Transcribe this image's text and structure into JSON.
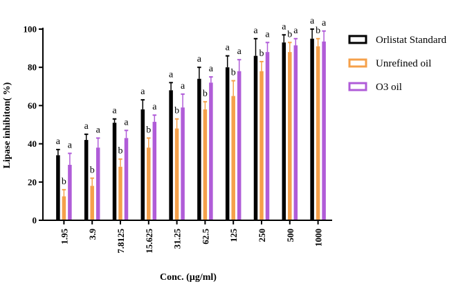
{
  "chart_data": {
    "type": "bar",
    "xlabel": "Conc. (µg/ml)",
    "ylabel": "Lipase inhibiton( %)",
    "ylim": [
      0,
      100
    ],
    "yticks": [
      0,
      20,
      40,
      60,
      80,
      100
    ],
    "categories": [
      "1.95",
      "3.9",
      "7.8125",
      "15.625",
      "31.25",
      "62.5",
      "125",
      "250",
      "500",
      "1000"
    ],
    "legend_position": "top-right",
    "series": [
      {
        "name": "Orlistat Standard",
        "color": "#000000",
        "values": [
          34,
          42,
          51,
          58,
          68,
          74,
          80,
          86,
          93,
          95
        ],
        "error_upper": [
          37,
          45,
          53,
          63,
          72,
          80,
          86,
          95,
          97,
          100
        ],
        "sig_labels": [
          "a",
          "a",
          "a",
          "a",
          "a",
          "a",
          "a",
          "a",
          "a",
          "a"
        ]
      },
      {
        "name": "Unrefined oil",
        "color": "#F5A04A",
        "values": [
          12.5,
          18,
          28,
          38,
          48,
          58,
          65,
          78,
          88,
          91
        ],
        "error_upper": [
          16,
          22,
          32,
          43,
          53,
          62,
          73,
          83,
          93,
          95
        ],
        "sig_labels": [
          "b",
          "b",
          "b",
          "b",
          "b",
          "b",
          "b",
          "b",
          "b",
          "b"
        ]
      },
      {
        "name": "O3 oil",
        "color": "#B05CD8",
        "values": [
          29,
          38,
          43,
          51.5,
          59,
          72,
          78,
          88,
          91.5,
          93.5
        ],
        "error_upper": [
          35,
          43,
          47,
          55,
          66,
          75,
          84,
          93,
          95,
          99
        ],
        "sig_labels": [
          "a",
          "a",
          "a",
          "a",
          "a",
          "a",
          "a",
          "a",
          "a",
          "a"
        ]
      }
    ]
  }
}
